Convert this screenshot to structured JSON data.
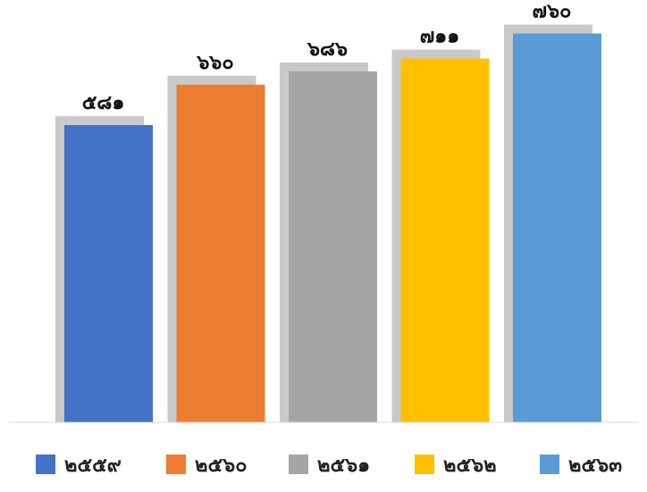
{
  "chart_data": {
    "type": "bar",
    "categories": [
      "๒๕๕๙",
      "๒๕๖๐",
      "๒๕๖๑",
      "๒๕๖๒",
      "๒๕๖๓"
    ],
    "values": [
      581,
      660,
      686,
      711,
      760
    ],
    "value_labels": [
      "๕๘๑",
      "๖๖๐",
      "๖๘๖",
      "๗๑๑",
      "๗๖๐"
    ],
    "colors": [
      "#4472C4",
      "#ED7D31",
      "#A5A5A5",
      "#FFC000",
      "#5B9BD5"
    ],
    "shadow_color": "#C9C9C9",
    "title": "",
    "xlabel": "",
    "ylabel": "",
    "ylim": [
      0,
      800
    ],
    "grid": false,
    "legend": "bottom"
  }
}
